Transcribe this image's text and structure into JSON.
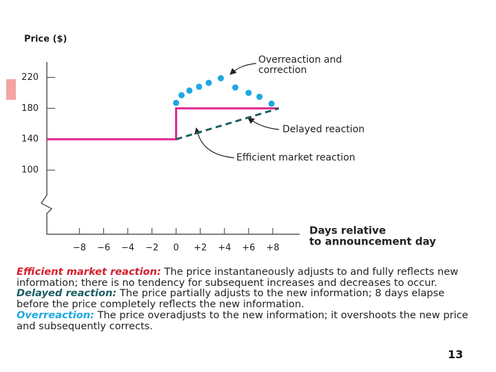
{
  "chart_data": {
    "type": "line",
    "y_label": "Price ($)",
    "x_label": [
      "Days relative",
      "to announcement day"
    ],
    "xlim": [
      -10.7,
      10
    ],
    "ylim": [
      100,
      240
    ],
    "yticks": [
      100,
      140,
      180,
      220
    ],
    "xticks": [
      {
        "value": -8,
        "label": "−8"
      },
      {
        "value": -6,
        "label": "−6"
      },
      {
        "value": -4,
        "label": "−4"
      },
      {
        "value": -2,
        "label": "−2"
      },
      0,
      {
        "value": 2,
        "label": "+2"
      },
      {
        "value": 4,
        "label": "+4"
      },
      {
        "value": 6,
        "label": "+6"
      },
      {
        "value": 8,
        "label": "+8"
      }
    ],
    "series": [
      {
        "color": "#e3238d",
        "line_style": "solid",
        "x": [
          -10.7,
          0,
          0,
          8.5
        ],
        "values": [
          140,
          140,
          180,
          180
        ]
      },
      {
        "color": "#1d5f5c",
        "line_style": "dashed",
        "x": [
          0,
          8.5
        ],
        "values": [
          140,
          180
        ]
      },
      {
        "color": "#1fa8e2",
        "line_style": "none",
        "marker": "dot",
        "x": [
          0,
          0.45,
          1.1,
          1.9,
          2.7,
          3.7,
          4.9,
          6.0,
          6.9,
          7.9
        ],
        "values": [
          187,
          197,
          203,
          208,
          213,
          219,
          207,
          200,
          195,
          186
        ]
      }
    ],
    "annotations": [
      [
        "Overreaction and",
        "correction"
      ],
      [
        "Delayed reaction"
      ],
      [
        "Efficient market reaction"
      ]
    ]
  },
  "notes": [
    {
      "term": "Efficient market reaction:",
      "color": "#d4202f",
      "text": " The price instantaneously adjusts to and fully reflects new information; there is no tendency for subsequent increases and decreases to occur."
    },
    {
      "term": "Delayed reaction:",
      "color": "#1a5e63",
      "text": " The price partially adjusts to the new information; 8 days elapse before the price completely reflects the new information."
    },
    {
      "term": "Overreaction:",
      "color": "#1fa8e2",
      "text": " The price overadjusts to the new information; it overshoots the new price and subsequently corrects."
    }
  ],
  "slide_number": "13"
}
